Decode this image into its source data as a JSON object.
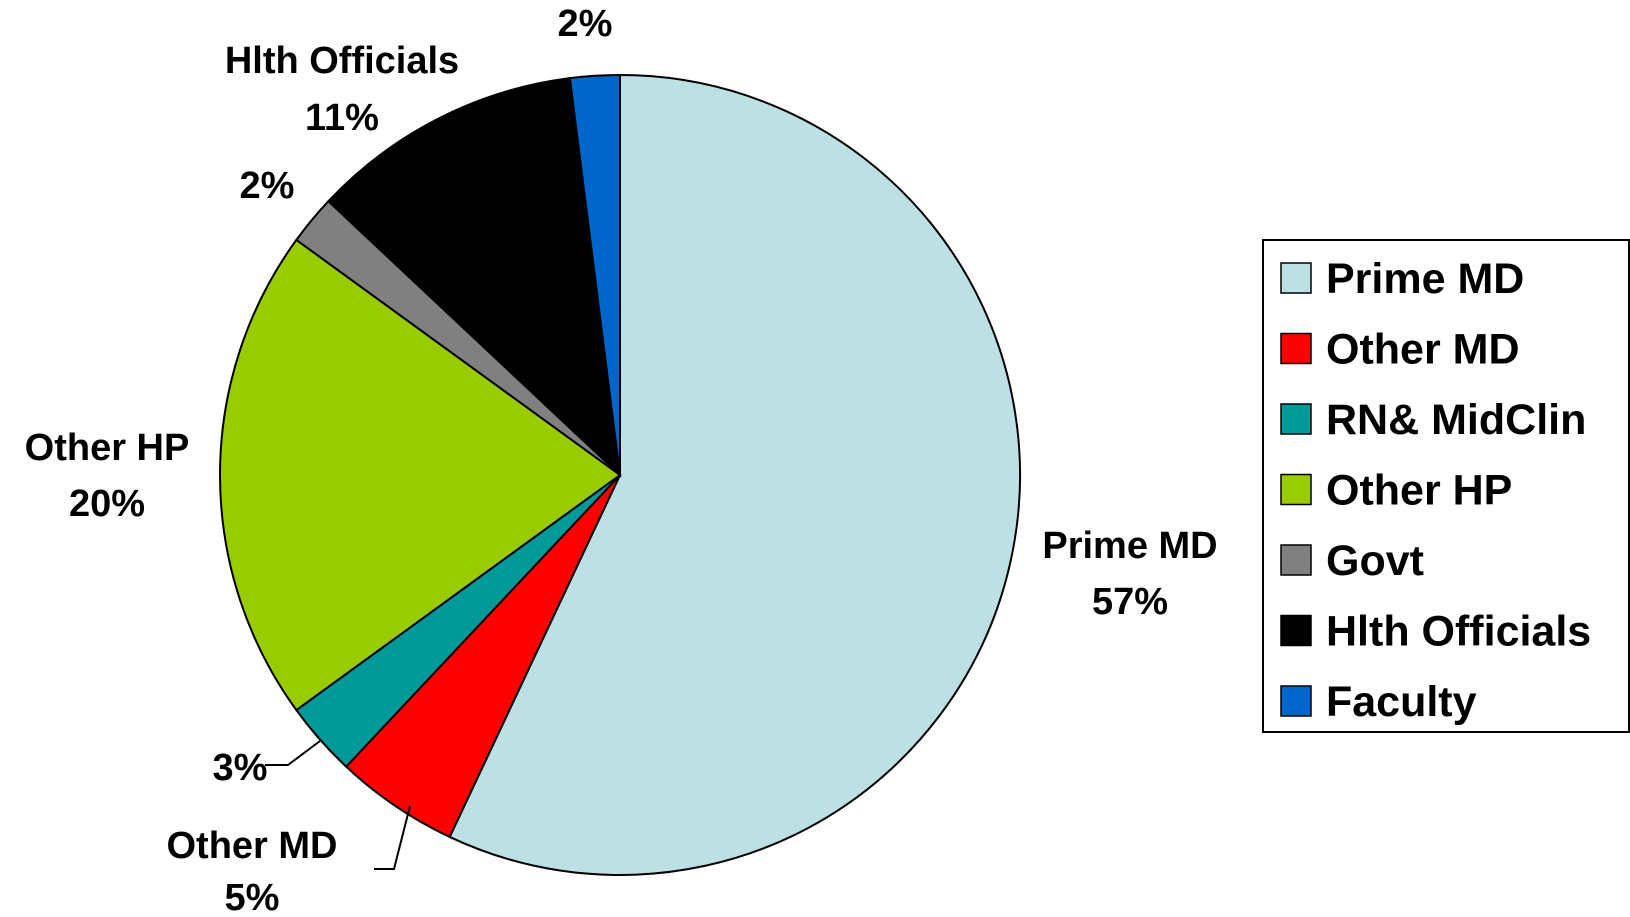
{
  "chart_data": {
    "type": "pie",
    "title": "",
    "legend_position": "right",
    "slices": [
      {
        "name": "Prime MD",
        "value": 57,
        "color": "#BCE0E3",
        "label": "Prime MD",
        "pct_text": "57%"
      },
      {
        "name": "Other MD",
        "value": 5,
        "color": "#FF0000",
        "label": "Other MD",
        "pct_text": "5%"
      },
      {
        "name": "RN& MidClin",
        "value": 3,
        "color": "#009999",
        "label": "",
        "pct_text": "3%"
      },
      {
        "name": "Other HP",
        "value": 20,
        "color": "#99CC00",
        "label": "Other HP",
        "pct_text": "20%"
      },
      {
        "name": "Govt",
        "value": 2,
        "color": "#808080",
        "label": "",
        "pct_text": "2%"
      },
      {
        "name": "Hlth Officials",
        "value": 11,
        "color": "#000000",
        "label": "Hlth Officials",
        "pct_text": "11%"
      },
      {
        "name": "Faculty",
        "value": 2,
        "color": "#0066CC",
        "label": "",
        "pct_text": "2%"
      }
    ]
  }
}
